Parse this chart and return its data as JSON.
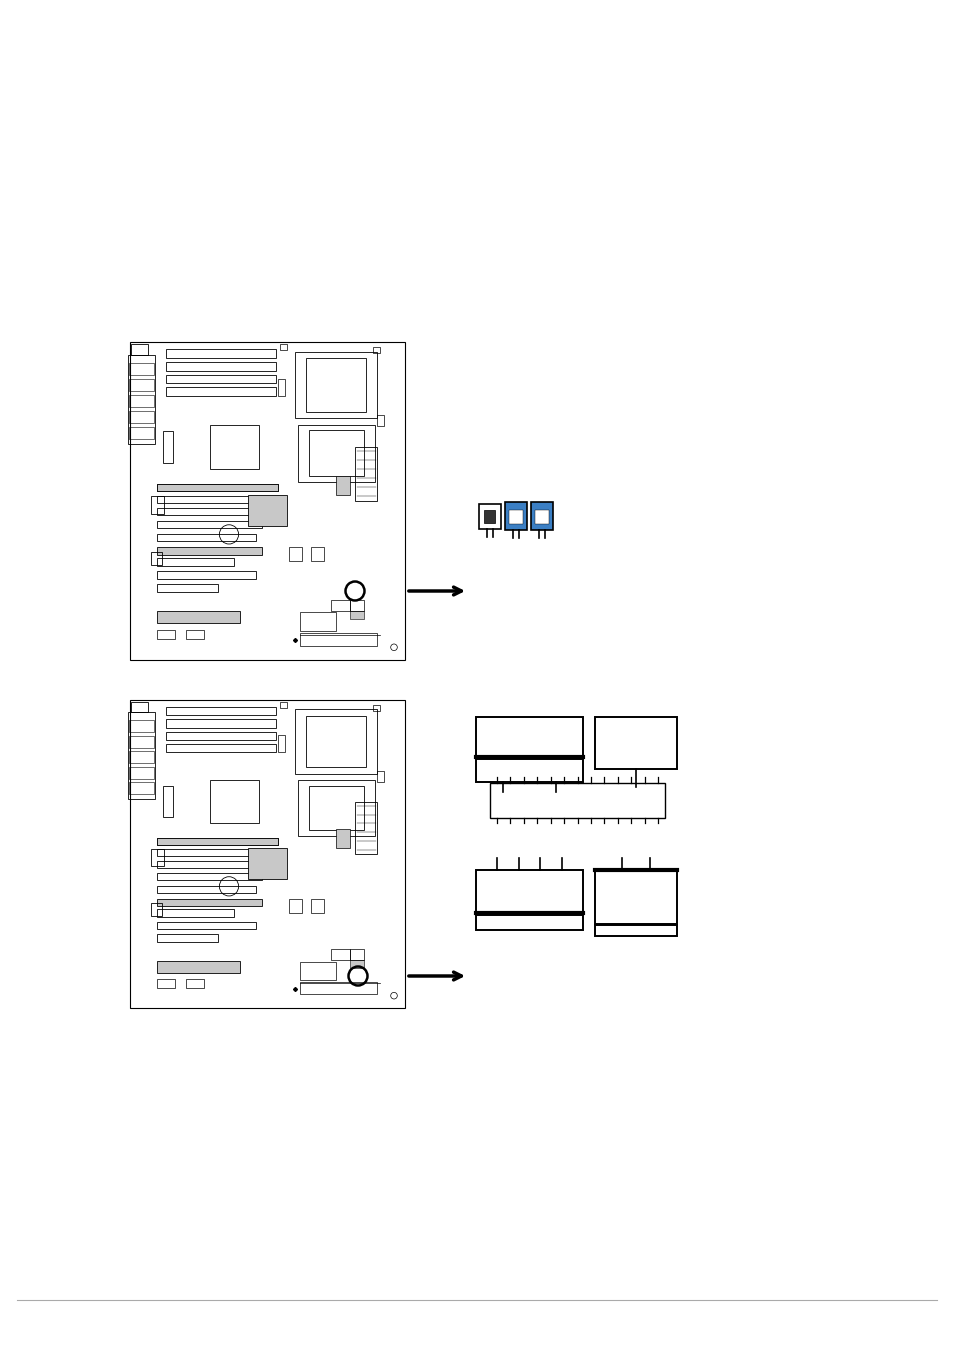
{
  "bg_color": "#ffffff",
  "line_color": "#000000",
  "blue_color": "#3B7FC4",
  "gray_color": "#909090",
  "light_gray": "#C8C8C8",
  "page_width": 9.54,
  "page_height": 13.51,
  "dpi": 100
}
